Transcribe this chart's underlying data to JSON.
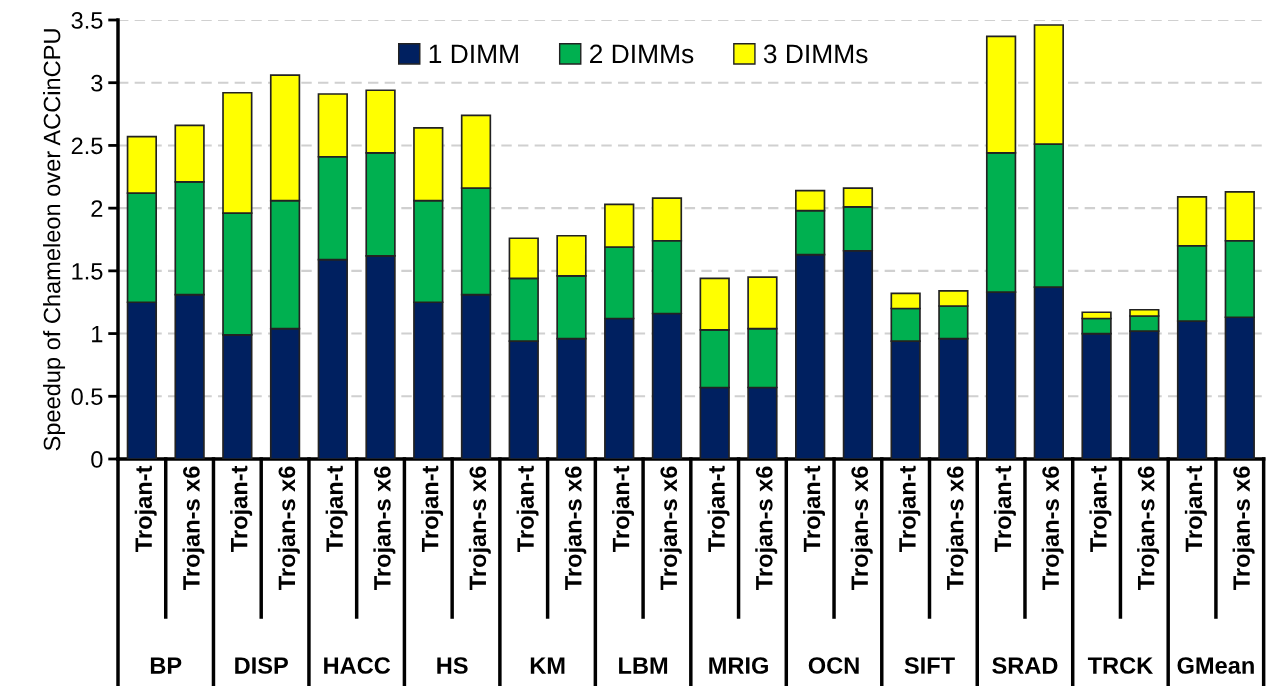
{
  "chart_data": {
    "type": "bar",
    "stacked": true,
    "ylabel": "Speedup of Chameleon over ACCinCPU",
    "categories": [
      "Trojan-t",
      "Trojan-s x6",
      "Trojan-t",
      "Trojan-s x6",
      "Trojan-t",
      "Trojan-s x6",
      "Trojan-t",
      "Trojan-s x6",
      "Trojan-t",
      "Trojan-s x6",
      "Trojan-t",
      "Trojan-s x6",
      "Trojan-t",
      "Trojan-s x6",
      "Trojan-t",
      "Trojan-s x6",
      "Trojan-t",
      "Trojan-s x6",
      "Trojan-t",
      "Trojan-s x6",
      "Trojan-t",
      "Trojan-s x6",
      "Trojan-t",
      "Trojan-s x6"
    ],
    "annotations": [
      "BP",
      "DISP",
      "HACC",
      "HS",
      "KM",
      "LBM",
      "MRIG",
      "OCN",
      "SIFT",
      "SRAD",
      "TRCK",
      "GMean"
    ],
    "series": [
      {
        "name": "1 DIMM",
        "color": "#002060",
        "values": [
          1.25,
          1.31,
          0.99,
          1.04,
          1.59,
          1.62,
          1.25,
          1.31,
          0.94,
          0.96,
          1.12,
          1.16,
          0.57,
          0.57,
          1.63,
          1.66,
          0.94,
          0.96,
          1.33,
          1.37,
          1.0,
          1.02,
          1.1,
          1.13
        ]
      },
      {
        "name": "2 DIMMs",
        "color": "#00b050",
        "values": [
          0.87,
          0.9,
          0.97,
          1.02,
          0.82,
          0.82,
          0.81,
          0.85,
          0.5,
          0.5,
          0.57,
          0.58,
          0.46,
          0.47,
          0.35,
          0.35,
          0.26,
          0.26,
          1.11,
          1.14,
          0.12,
          0.12,
          0.6,
          0.61
        ]
      },
      {
        "name": "3 DIMMs",
        "color": "#ffff00",
        "values": [
          0.45,
          0.45,
          0.96,
          1.0,
          0.5,
          0.5,
          0.58,
          0.58,
          0.32,
          0.32,
          0.34,
          0.34,
          0.41,
          0.41,
          0.16,
          0.15,
          0.12,
          0.12,
          0.93,
          0.95,
          0.05,
          0.05,
          0.39,
          0.39
        ]
      }
    ],
    "ylim": [
      0,
      3.5
    ],
    "yticks": [
      0,
      0.5,
      1,
      1.5,
      2,
      2.5,
      3,
      3.5
    ],
    "grid": "y",
    "legend": "top"
  }
}
